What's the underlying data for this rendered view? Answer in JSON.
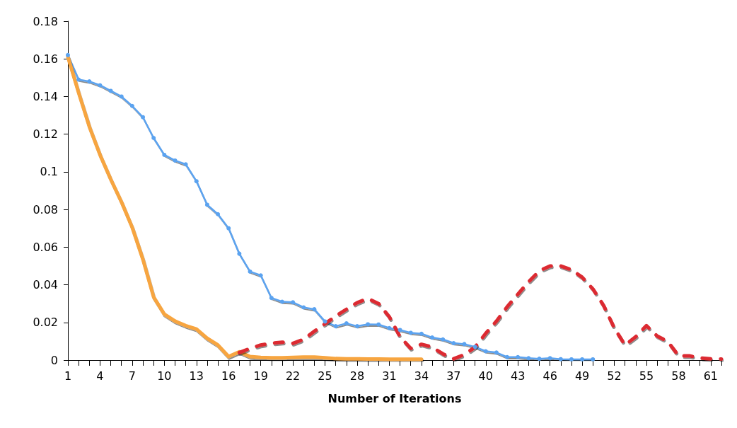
{
  "chart_data": {
    "type": "line",
    "xlabel": "Number of Iterations",
    "categories": [
      "1",
      null,
      null,
      "4",
      null,
      null,
      "7",
      null,
      null,
      "10",
      null,
      null,
      "13",
      null,
      null,
      "16",
      null,
      null,
      "19",
      null,
      null,
      "22",
      null,
      null,
      "25",
      null,
      null,
      "28",
      null,
      null,
      "31",
      null,
      null,
      "34",
      null,
      null,
      "37",
      null,
      null,
      "40",
      null,
      null,
      "43",
      null,
      null,
      "46",
      null,
      null,
      "49",
      null,
      null,
      "52",
      null,
      null,
      "55",
      null,
      null,
      "58",
      null,
      null,
      "61",
      null
    ],
    "series": [
      {
        "color": "#5ba3f0",
        "marker": "circle",
        "line_style": "solid",
        "values": [
          0.162,
          0.149,
          0.148,
          0.146,
          0.143,
          0.14,
          0.135,
          0.129,
          0.118,
          0.109,
          0.106,
          0.104,
          0.095,
          0.0825,
          0.0775,
          0.07,
          0.0565,
          0.047,
          0.045,
          0.033,
          0.031,
          0.0307,
          0.028,
          0.027,
          0.0205,
          0.018,
          0.0195,
          0.018,
          0.019,
          0.0189,
          0.017,
          0.016,
          0.0145,
          0.014,
          0.012,
          0.011,
          0.009,
          0.0085,
          0.007,
          0.0047,
          0.004,
          0.0016,
          0.0016,
          0.001,
          0.0007,
          0.001,
          0.0005,
          0.0004,
          0.0004,
          0.0004,
          null,
          null,
          null,
          null,
          null,
          null,
          null,
          null,
          null,
          null,
          null,
          null
        ]
      },
      {
        "color": "#f7a540",
        "marker": "none",
        "line_style": "solid",
        "values": [
          0.161,
          0.142,
          0.124,
          0.109,
          0.096,
          0.084,
          0.0705,
          0.0535,
          0.0335,
          0.0244,
          0.0207,
          0.0183,
          0.0165,
          0.0116,
          0.008,
          0.0019,
          0.0044,
          0.0019,
          0.0014,
          0.0012,
          0.0012,
          0.0014,
          0.0016,
          0.0016,
          0.0012,
          0.0008,
          0.0007,
          0.0007,
          0.0006,
          0.0006,
          0.0005,
          0.0005,
          0.0005,
          0.0005,
          null,
          null,
          null,
          null,
          null,
          null,
          null,
          null,
          null,
          null,
          null,
          null,
          null,
          null,
          null,
          null,
          null,
          null,
          null,
          null,
          null,
          null,
          null,
          null,
          null,
          null,
          null,
          null
        ]
      },
      {
        "color": "#dc2b30",
        "marker": "none",
        "line_style": "dashed",
        "values": [
          null,
          null,
          null,
          null,
          null,
          null,
          null,
          null,
          null,
          null,
          null,
          null,
          null,
          null,
          null,
          null,
          0.004,
          0.0062,
          0.008,
          0.009,
          0.0095,
          0.0089,
          0.011,
          0.0153,
          0.0193,
          0.0234,
          0.027,
          0.0305,
          0.0327,
          0.03,
          0.023,
          0.0124,
          0.0062,
          0.0084,
          0.0069,
          0.0033,
          0.0007,
          0.0029,
          0.0069,
          0.0142,
          0.0207,
          0.0283,
          0.035,
          0.0416,
          0.0474,
          0.05,
          0.05,
          0.048,
          0.044,
          0.0378,
          0.029,
          0.017,
          0.008,
          0.0124,
          0.0183,
          0.0128,
          0.0098,
          0.0023,
          0.0023,
          0.0011,
          0.0007,
          0.0006
        ]
      }
    ],
    "ylim": [
      0,
      0.18
    ],
    "yticks": [
      0,
      0.02,
      0.04,
      0.06,
      0.08,
      0.1,
      0.12,
      0.14,
      0.16,
      0.18
    ],
    "grid": false
  }
}
